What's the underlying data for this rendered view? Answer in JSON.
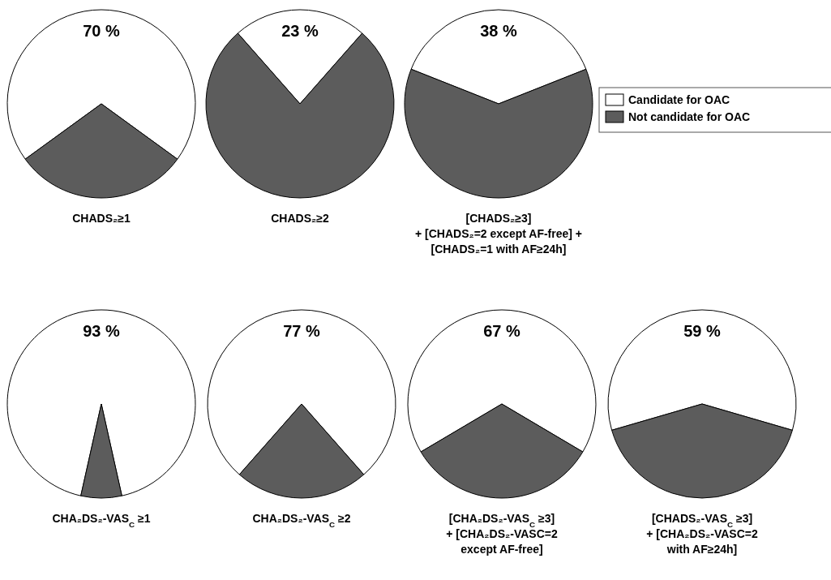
{
  "chart_data": [
    {
      "type": "pie",
      "title": "CHADS₂≥1",
      "categories": [
        null,
        null
      ],
      "values": [
        70,
        30
      ],
      "colors": [
        "#ffffff",
        "#5c5c5c"
      ],
      "value_labels": [
        "70 %",
        null
      ],
      "legend": false
    },
    {
      "type": "pie",
      "title": "CHADS₂≥2",
      "categories": [
        null,
        null
      ],
      "values": [
        23,
        77
      ],
      "colors": [
        "#ffffff",
        "#5c5c5c"
      ],
      "value_labels": [
        "23 %",
        null
      ],
      "legend": false
    },
    {
      "type": "pie",
      "title": "[CHADS₂≥3]\n+ [CHADS₂=2 except AF-free] +\n[CHADS₂=1 with  AF≥24h]",
      "categories": [
        "Candidate for OAC",
        "Not candidate for OAC"
      ],
      "values": [
        38,
        62
      ],
      "colors": [
        "#ffffff",
        "#5c5c5c"
      ],
      "value_labels": [
        "38 %",
        null
      ],
      "legend": "right"
    },
    {
      "type": "pie",
      "title": "CHA₂DS₂-VAS$_{C}$ ≥1",
      "categories": [
        null,
        null
      ],
      "values": [
        93,
        7
      ],
      "colors": [
        "#ffffff",
        "#5c5c5c"
      ],
      "value_labels": [
        "93 %",
        null
      ],
      "legend": false
    },
    {
      "type": "pie",
      "title": "CHA₂DS₂-VAS$_{C}$ ≥2",
      "categories": [
        null,
        null
      ],
      "values": [
        77,
        23
      ],
      "colors": [
        "#ffffff",
        "#5c5c5c"
      ],
      "value_labels": [
        "77 %",
        null
      ],
      "legend": false
    },
    {
      "type": "pie",
      "title": "[CHA₂DS₂-VAS$_{C}$ ≥3]\n+ [CHA₂DS₂-VASC=2\nexcept AF-free]",
      "categories": [
        null,
        null
      ],
      "values": [
        67,
        33
      ],
      "colors": [
        "#ffffff",
        "#5c5c5c"
      ],
      "value_labels": [
        "67 %",
        null
      ],
      "legend": false
    },
    {
      "type": "pie",
      "title": "[CHADS₂-VAS$_{C}$ ≥3]\n+ [CHA₂DS₂-VASC=2\nwith AF≥24h]",
      "categories": [
        null,
        null
      ],
      "values": [
        59,
        41
      ],
      "colors": [
        "#ffffff",
        "#5c5c5c"
      ],
      "value_labels": [
        "59 %",
        null
      ],
      "legend": false
    }
  ]
}
